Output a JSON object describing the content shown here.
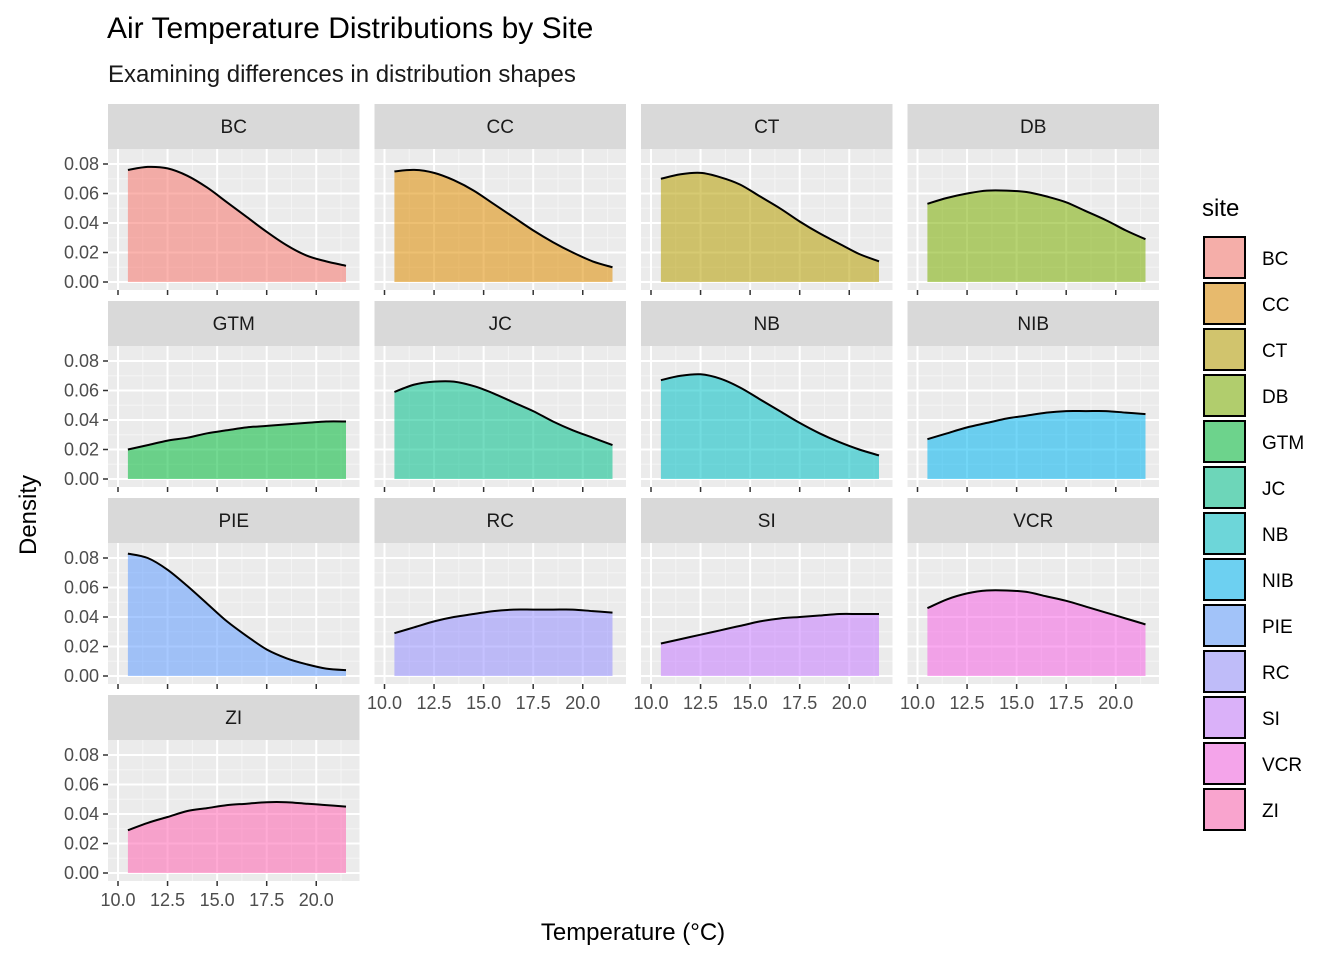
{
  "chart_data": {
    "type": "area",
    "title": "Air Temperature Distributions by Site",
    "subtitle": "Examining differences in distribution shapes",
    "xlabel": "Temperature (°C)",
    "ylabel": "Density",
    "xlim": [
      10.0,
      22.0
    ],
    "ylim": [
      0.0,
      0.085
    ],
    "x_ticks": [
      "10.0",
      "12.5",
      "15.0",
      "17.5",
      "20.0"
    ],
    "y_ticks": [
      "0.00",
      "0.02",
      "0.04",
      "0.06",
      "0.08"
    ],
    "x_tick_values": [
      10.0,
      12.5,
      15.0,
      17.5,
      20.0
    ],
    "y_tick_values": [
      0.0,
      0.02,
      0.04,
      0.06,
      0.08
    ],
    "grid": true,
    "facet_layout": {
      "columns": 4,
      "rows": 4
    },
    "legend": {
      "title": "site",
      "position": "right"
    },
    "x": [
      10.5,
      11.5,
      12.5,
      13.5,
      14.5,
      15.5,
      16.5,
      17.5,
      18.5,
      19.5,
      20.5,
      21.5
    ],
    "series": [
      {
        "name": "BC",
        "color": "#F8766D",
        "values": [
          0.076,
          0.078,
          0.077,
          0.072,
          0.064,
          0.054,
          0.044,
          0.034,
          0.025,
          0.018,
          0.014,
          0.011
        ]
      },
      {
        "name": "CC",
        "color": "#DE8C00",
        "values": [
          0.075,
          0.076,
          0.074,
          0.069,
          0.062,
          0.053,
          0.044,
          0.035,
          0.027,
          0.02,
          0.014,
          0.01
        ]
      },
      {
        "name": "CT",
        "color": "#B79F00",
        "values": [
          0.07,
          0.073,
          0.074,
          0.071,
          0.066,
          0.058,
          0.05,
          0.041,
          0.033,
          0.026,
          0.019,
          0.014
        ]
      },
      {
        "name": "DB",
        "color": "#7CAE00",
        "values": [
          0.053,
          0.057,
          0.06,
          0.062,
          0.062,
          0.061,
          0.058,
          0.054,
          0.048,
          0.042,
          0.035,
          0.029
        ]
      },
      {
        "name": "GTM",
        "color": "#00BA38",
        "values": [
          0.02,
          0.023,
          0.026,
          0.028,
          0.031,
          0.033,
          0.035,
          0.036,
          0.037,
          0.038,
          0.039,
          0.039
        ]
      },
      {
        "name": "JC",
        "color": "#00C08B",
        "values": [
          0.059,
          0.064,
          0.066,
          0.066,
          0.063,
          0.058,
          0.052,
          0.046,
          0.039,
          0.033,
          0.028,
          0.023
        ]
      },
      {
        "name": "NB",
        "color": "#00BFC4",
        "values": [
          0.067,
          0.07,
          0.071,
          0.068,
          0.062,
          0.054,
          0.046,
          0.038,
          0.031,
          0.025,
          0.02,
          0.016
        ]
      },
      {
        "name": "NIB",
        "color": "#00B4F0",
        "values": [
          0.027,
          0.031,
          0.035,
          0.038,
          0.041,
          0.043,
          0.045,
          0.046,
          0.046,
          0.046,
          0.045,
          0.044
        ]
      },
      {
        "name": "PIE",
        "color": "#619CFF",
        "values": [
          0.083,
          0.08,
          0.072,
          0.061,
          0.049,
          0.037,
          0.027,
          0.018,
          0.012,
          0.008,
          0.005,
          0.004
        ]
      },
      {
        "name": "RC",
        "color": "#9590FF",
        "values": [
          0.029,
          0.033,
          0.037,
          0.04,
          0.042,
          0.044,
          0.045,
          0.045,
          0.045,
          0.045,
          0.044,
          0.043
        ]
      },
      {
        "name": "SI",
        "color": "#C77CFF",
        "values": [
          0.022,
          0.025,
          0.028,
          0.031,
          0.034,
          0.037,
          0.039,
          0.04,
          0.041,
          0.042,
          0.042,
          0.042
        ]
      },
      {
        "name": "VCR",
        "color": "#F564E3",
        "values": [
          0.046,
          0.052,
          0.056,
          0.058,
          0.058,
          0.057,
          0.054,
          0.051,
          0.047,
          0.043,
          0.039,
          0.035
        ]
      },
      {
        "name": "ZI",
        "color": "#FF64B0",
        "values": [
          0.029,
          0.034,
          0.038,
          0.042,
          0.044,
          0.046,
          0.047,
          0.048,
          0.048,
          0.047,
          0.046,
          0.045
        ]
      }
    ]
  }
}
